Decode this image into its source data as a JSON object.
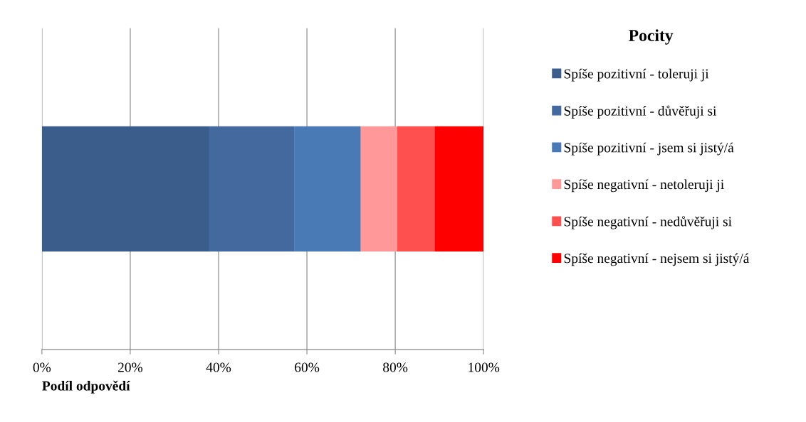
{
  "chart_data": {
    "type": "bar",
    "orientation": "horizontal",
    "stacked": true,
    "xlabel": "Podíl odpovědí",
    "legend_title": "Pocity",
    "legend": "right",
    "categories": [
      null
    ],
    "series": [
      {
        "name": "Spíše pozitivní - toleruji ji",
        "color": "#3a5d8c",
        "values": [
          37.9
        ]
      },
      {
        "name": "Spíše pozitivní - důvěřuji si",
        "color": "#44699e",
        "values": [
          19.2
        ]
      },
      {
        "name": "Spíše pozitivní - jsem si jistý/á",
        "color": "#4a7ab5",
        "values": [
          15.1
        ]
      },
      {
        "name": "Spíše negativní - netoleruji ji",
        "color": "#ff9999",
        "values": [
          8.2
        ]
      },
      {
        "name": "Spíše negativní - nedůvěřuji si",
        "color": "#ff5050",
        "values": [
          8.5
        ]
      },
      {
        "name": "Spíše negativní - nejsem si jistý/á",
        "color": "#ff0000",
        "values": [
          11.1
        ]
      }
    ],
    "xlim": [
      0,
      100
    ],
    "xticks": [
      {
        "value": 0,
        "label": "0%"
      },
      {
        "value": 20,
        "label": "20%"
      },
      {
        "value": 40,
        "label": "40%"
      },
      {
        "value": 60,
        "label": "60%"
      },
      {
        "value": 80,
        "label": "80%"
      },
      {
        "value": 100,
        "label": "100%"
      }
    ],
    "grid": "x"
  }
}
